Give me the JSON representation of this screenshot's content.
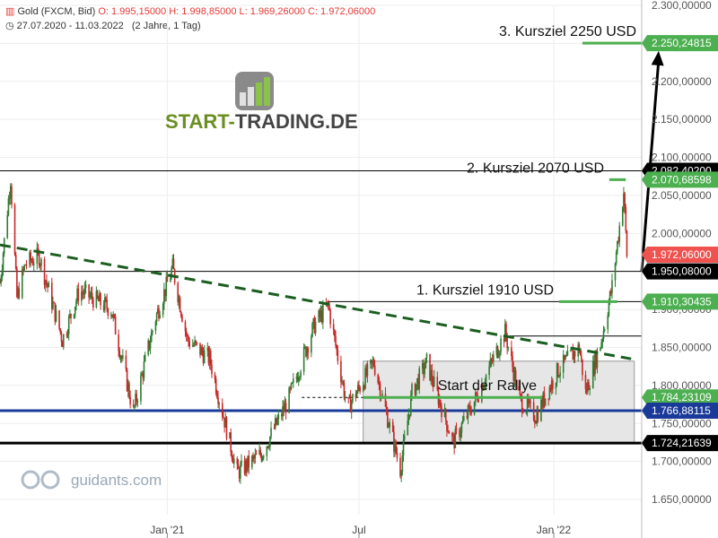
{
  "header": {
    "instrument": "Gold (FXCM, Bid)",
    "open": "O: 1.995,15000",
    "high": "H: 1.998,85000",
    "low": "L: 1.969,26000",
    "close": "C: 1.972,06000",
    "range": "27.07.2020 - 11.03.2022",
    "period": "(2 Jahre, 1 Tag)"
  },
  "logo": {
    "text_a": "START-",
    "text_b": "TRADING.DE"
  },
  "watermark": "guidants.com",
  "chart_data": {
    "type": "candlestick",
    "ylim": [
      1630,
      2300
    ],
    "y_ticks": [
      "2.300,00000",
      "2.250,00000",
      "2.200,00000",
      "2.150,00000",
      "2.100,00000",
      "2.050,00000",
      "2.000,00000",
      "1.950,00000",
      "1.900,00000",
      "1.850,00000",
      "1.800,00000",
      "1.750,00000",
      "1.700,00000",
      "1.650,00000"
    ],
    "y_tick_values": [
      2300,
      2250,
      2200,
      2150,
      2100,
      2050,
      2000,
      1950,
      1900,
      1850,
      1800,
      1750,
      1700,
      1650
    ],
    "x_ticks": [
      {
        "label": "Jan '21",
        "date": "2021-01-01"
      },
      {
        "label": "Jul",
        "date": "2021-07-01"
      },
      {
        "label": "Jan '22",
        "date": "2022-01-01"
      }
    ],
    "x_range": [
      "2020-07-27",
      "2022-03-25"
    ],
    "price_path": [
      {
        "date": "2020-07-27",
        "value": 1935
      },
      {
        "date": "2020-08-06",
        "value": 2072
      },
      {
        "date": "2020-08-12",
        "value": 1915
      },
      {
        "date": "2020-08-20",
        "value": 1960
      },
      {
        "date": "2020-09-02",
        "value": 1970
      },
      {
        "date": "2020-09-24",
        "value": 1860
      },
      {
        "date": "2020-10-10",
        "value": 1925
      },
      {
        "date": "2020-11-09",
        "value": 1900
      },
      {
        "date": "2020-11-30",
        "value": 1765
      },
      {
        "date": "2020-12-20",
        "value": 1885
      },
      {
        "date": "2021-01-06",
        "value": 1955
      },
      {
        "date": "2021-01-20",
        "value": 1860
      },
      {
        "date": "2021-02-10",
        "value": 1835
      },
      {
        "date": "2021-03-08",
        "value": 1685
      },
      {
        "date": "2021-03-31",
        "value": 1710
      },
      {
        "date": "2021-04-25",
        "value": 1780
      },
      {
        "date": "2021-05-20",
        "value": 1880
      },
      {
        "date": "2021-06-02",
        "value": 1905
      },
      {
        "date": "2021-06-20",
        "value": 1770
      },
      {
        "date": "2021-07-15",
        "value": 1830
      },
      {
        "date": "2021-08-09",
        "value": 1690
      },
      {
        "date": "2021-08-20",
        "value": 1790
      },
      {
        "date": "2021-09-03",
        "value": 1830
      },
      {
        "date": "2021-09-28",
        "value": 1725
      },
      {
        "date": "2021-10-20",
        "value": 1785
      },
      {
        "date": "2021-11-16",
        "value": 1870
      },
      {
        "date": "2021-11-30",
        "value": 1780
      },
      {
        "date": "2021-12-15",
        "value": 1760
      },
      {
        "date": "2022-01-05",
        "value": 1820
      },
      {
        "date": "2022-01-25",
        "value": 1850
      },
      {
        "date": "2022-01-31",
        "value": 1790
      },
      {
        "date": "2022-02-15",
        "value": 1860
      },
      {
        "date": "2022-02-25",
        "value": 1930
      },
      {
        "date": "2022-03-08",
        "value": 2055
      },
      {
        "date": "2022-03-11",
        "value": 1972
      }
    ],
    "candle_colors": {
      "up": "#2e7d32",
      "down": "#c62828"
    },
    "horizontal_levels": [
      {
        "value": 2082.4,
        "color": "#000000",
        "width": 1
      },
      {
        "value": 1950.08,
        "color": "#000000",
        "width": 1,
        "tag": "1.950,08000",
        "tag_color": "#000000"
      },
      {
        "value": 1910.30435,
        "color": "#000000",
        "width": 1,
        "start": "2021-06-01"
      },
      {
        "value": 1865,
        "color": "#000000",
        "width": 1,
        "start": "2021-11-20"
      },
      {
        "value": 1784.23109,
        "color": "#000000",
        "width": 1,
        "dash": true,
        "start": "2021-05-08",
        "end": "2021-07-05"
      },
      {
        "value": 1766.88115,
        "color": "#1a3a99",
        "width": 3,
        "tag": "1.766,88115",
        "tag_color": "#1a3a99"
      },
      {
        "value": 1724.21639,
        "color": "#000000",
        "width": 3,
        "tag": "1.724,21639",
        "tag_color": "#000000"
      }
    ],
    "target_lines": [
      {
        "value": 2250.24815,
        "start": "2022-01-28",
        "label": "3. Kursziel 2250 USD",
        "tag": "2.250,24815"
      },
      {
        "value": 2070.68598,
        "start": "2022-03-10",
        "label": "2. Kursziel 2070 USD",
        "tag": "2.070,68598"
      },
      {
        "value": 1910.30435,
        "start": "2022-03-02",
        "label": "1. Kursziel 1910 USD",
        "tag": "1.910,30435"
      },
      {
        "value": 1784.23109,
        "start": "2021-07-05",
        "label": "Start der Rallye",
        "tag": "1.784,23109"
      }
    ],
    "hidden_tag": "2.082,40200",
    "current_price_tag": {
      "value": 1972.06,
      "tag": "1.972,06000",
      "color": "#ef5350"
    },
    "trendline": {
      "from": {
        "date": "2020-07-27",
        "value": 1985
      },
      "to": {
        "date": "2022-03-15",
        "value": 1835
      },
      "color": "#1b5e20",
      "dash": true
    },
    "consolidation_box": {
      "from": "2021-07-05",
      "to": "2022-03-18",
      "top": 1832,
      "bottom": 1724.21639
    },
    "arrow": {
      "from": {
        "date": "2022-03-25",
        "value": 1950
      },
      "to": {
        "date": "2022-04-10",
        "value": 2240
      }
    },
    "target_color": "#4caf50"
  }
}
